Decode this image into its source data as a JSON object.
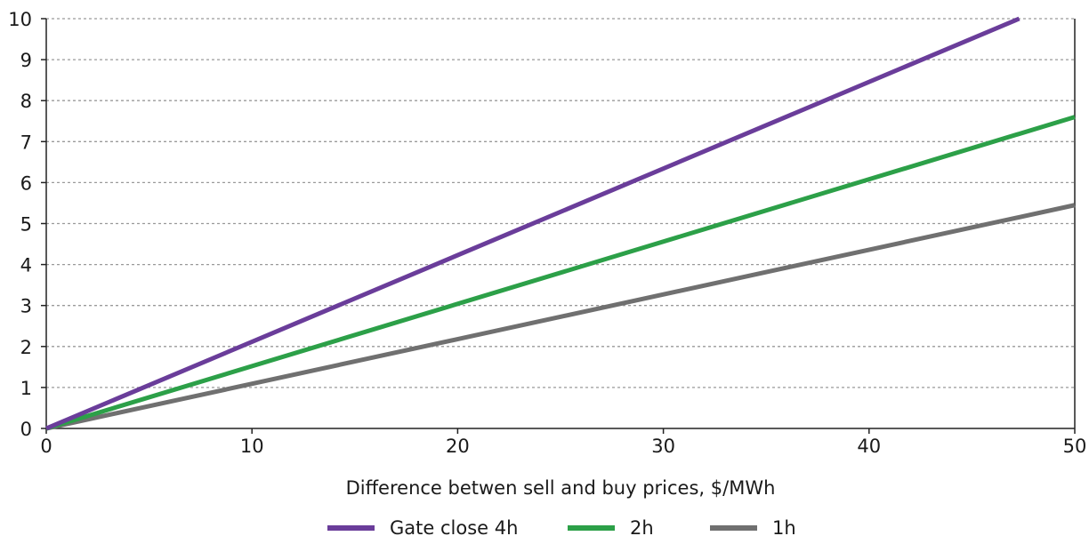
{
  "chart_data": {
    "type": "line",
    "xlabel": "Difference betwen sell and buy prices, $/MWh",
    "ylabel": "",
    "xlim": [
      0,
      50
    ],
    "ylim": [
      0,
      10
    ],
    "x_ticks": [
      "0",
      "10",
      "20",
      "30",
      "40",
      "50"
    ],
    "y_ticks": [
      "0",
      "1",
      "2",
      "3",
      "4",
      "5",
      "6",
      "7",
      "8",
      "9",
      "10"
    ],
    "grid": "horizontal dotted",
    "legend_position": "bottom",
    "series": [
      {
        "name": "Gate close 4h",
        "color": "#6a3d9a",
        "x": [
          0,
          47.3
        ],
        "y": [
          0,
          10
        ]
      },
      {
        "name": "2h",
        "color": "#2ca048",
        "x": [
          0,
          50
        ],
        "y": [
          0,
          7.6
        ]
      },
      {
        "name": "1h",
        "color": "#707070",
        "x": [
          0,
          50
        ],
        "y": [
          0,
          5.45
        ]
      }
    ]
  }
}
